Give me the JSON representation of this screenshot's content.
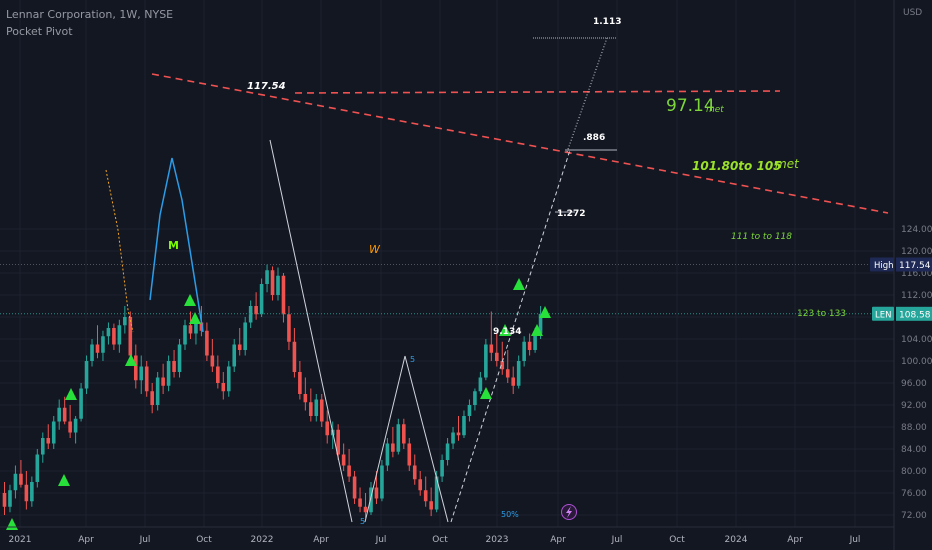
{
  "header": {
    "symbol_line": "Lennar Corporation, 1W, NYSE",
    "indicator": "Pocket Pivot"
  },
  "price_axis": {
    "currency": "USD",
    "ticks": [
      "124.00",
      "120.00",
      "116.00",
      "112.00",
      "108.00",
      "104.00",
      "100.00",
      "96.00",
      "92.00",
      "88.00",
      "84.00",
      "80.00",
      "76.00",
      "72.00"
    ]
  },
  "time_axis": {
    "ticks": [
      "2021",
      "Apr",
      "Jul",
      "Oct",
      "2022",
      "Apr",
      "Jul",
      "Oct",
      "2023",
      "Apr",
      "Jul",
      "Oct",
      "2024",
      "Apr",
      "Jul"
    ]
  },
  "badges": {
    "high_label": "High",
    "high_value": "117.54",
    "ticker_label": "LEN",
    "ticker_value": "108.58"
  },
  "annotations": {
    "peak_price": "117.54",
    "fib_1113": "1.113",
    "fib_886": ".886",
    "fib_1272": "1.272",
    "fib_low": "9.134",
    "target_9714": "97.14",
    "met_small": "met",
    "target_10180": "101.80to 105",
    "met_large": "met",
    "target_111": "111 to to 118",
    "target_123": "123 to 133",
    "pattern_m": "M",
    "pattern_w": "W",
    "wave_5": "5",
    "wave_5b": "5",
    "percent_50": "50%"
  },
  "colors": {
    "background": "#131722",
    "up": "#26a69a",
    "down": "#ef5350",
    "signal": "#27e03a",
    "resistance": "#f05252",
    "annotation_green": "#7cd63a",
    "badge_high": "#1e2a55",
    "badge_len": "#26a69a"
  },
  "chart_data": {
    "type": "candlestick",
    "title": "Lennar Corporation, 1W, NYSE",
    "ylim": [
      71,
      126
    ],
    "candles": [
      {
        "o": 76.0,
        "h": 78.0,
        "l": 72.0,
        "c": 73.5
      },
      {
        "o": 73.5,
        "h": 77.5,
        "l": 72.5,
        "c": 76.5
      },
      {
        "o": 76.5,
        "h": 81.0,
        "l": 75.0,
        "c": 79.5
      },
      {
        "o": 79.5,
        "h": 82.0,
        "l": 77.0,
        "c": 77.5
      },
      {
        "o": 77.5,
        "h": 80.0,
        "l": 73.0,
        "c": 74.5
      },
      {
        "o": 74.5,
        "h": 79.0,
        "l": 73.5,
        "c": 78.0
      },
      {
        "o": 78.0,
        "h": 84.0,
        "l": 77.0,
        "c": 83.0
      },
      {
        "o": 83.0,
        "h": 87.0,
        "l": 81.5,
        "c": 86.0
      },
      {
        "o": 86.0,
        "h": 88.5,
        "l": 84.0,
        "c": 85.0
      },
      {
        "o": 85.0,
        "h": 90.0,
        "l": 84.0,
        "c": 89.0
      },
      {
        "o": 89.0,
        "h": 93.0,
        "l": 87.5,
        "c": 91.5
      },
      {
        "o": 91.5,
        "h": 93.5,
        "l": 88.5,
        "c": 89.0
      },
      {
        "o": 89.0,
        "h": 92.0,
        "l": 86.0,
        "c": 87.0
      },
      {
        "o": 87.0,
        "h": 90.0,
        "l": 85.0,
        "c": 89.5
      },
      {
        "o": 89.5,
        "h": 96.0,
        "l": 89.0,
        "c": 95.0
      },
      {
        "o": 95.0,
        "h": 101.0,
        "l": 94.0,
        "c": 100.0
      },
      {
        "o": 100.0,
        "h": 104.0,
        "l": 99.0,
        "c": 103.0
      },
      {
        "o": 103.0,
        "h": 106.5,
        "l": 100.5,
        "c": 101.5
      },
      {
        "o": 101.5,
        "h": 105.5,
        "l": 100.0,
        "c": 104.5
      },
      {
        "o": 104.5,
        "h": 107.0,
        "l": 103.0,
        "c": 106.0
      },
      {
        "o": 106.0,
        "h": 106.8,
        "l": 102.0,
        "c": 103.0
      },
      {
        "o": 103.0,
        "h": 107.5,
        "l": 101.5,
        "c": 106.5
      },
      {
        "o": 106.5,
        "h": 110.0,
        "l": 105.0,
        "c": 108.0
      },
      {
        "o": 108.0,
        "h": 109.0,
        "l": 100.0,
        "c": 101.0
      },
      {
        "o": 101.0,
        "h": 103.0,
        "l": 95.0,
        "c": 96.5
      },
      {
        "o": 96.5,
        "h": 101.0,
        "l": 94.0,
        "c": 99.0
      },
      {
        "o": 99.0,
        "h": 100.0,
        "l": 93.5,
        "c": 94.5
      },
      {
        "o": 94.5,
        "h": 96.0,
        "l": 90.5,
        "c": 92.0
      },
      {
        "o": 92.0,
        "h": 98.0,
        "l": 91.0,
        "c": 97.0
      },
      {
        "o": 97.0,
        "h": 99.5,
        "l": 94.0,
        "c": 95.5
      },
      {
        "o": 95.5,
        "h": 101.0,
        "l": 94.5,
        "c": 100.0
      },
      {
        "o": 100.0,
        "h": 102.0,
        "l": 97.0,
        "c": 98.0
      },
      {
        "o": 98.0,
        "h": 104.0,
        "l": 97.0,
        "c": 103.0
      },
      {
        "o": 103.0,
        "h": 107.5,
        "l": 102.0,
        "c": 106.5
      },
      {
        "o": 106.5,
        "h": 109.0,
        "l": 104.0,
        "c": 105.0
      },
      {
        "o": 105.0,
        "h": 108.0,
        "l": 103.0,
        "c": 107.0
      },
      {
        "o": 107.0,
        "h": 110.0,
        "l": 104.5,
        "c": 105.5
      },
      {
        "o": 105.5,
        "h": 107.0,
        "l": 100.0,
        "c": 101.0
      },
      {
        "o": 101.0,
        "h": 104.0,
        "l": 98.0,
        "c": 99.0
      },
      {
        "o": 99.0,
        "h": 101.0,
        "l": 95.0,
        "c": 96.0
      },
      {
        "o": 96.0,
        "h": 98.0,
        "l": 93.0,
        "c": 94.5
      },
      {
        "o": 94.5,
        "h": 100.0,
        "l": 93.5,
        "c": 99.0
      },
      {
        "o": 99.0,
        "h": 104.0,
        "l": 98.0,
        "c": 103.0
      },
      {
        "o": 103.0,
        "h": 106.0,
        "l": 101.0,
        "c": 102.0
      },
      {
        "o": 102.0,
        "h": 108.0,
        "l": 101.0,
        "c": 107.0
      },
      {
        "o": 107.0,
        "h": 111.0,
        "l": 106.0,
        "c": 110.0
      },
      {
        "o": 110.0,
        "h": 112.5,
        "l": 107.5,
        "c": 108.5
      },
      {
        "o": 108.5,
        "h": 115.0,
        "l": 108.0,
        "c": 114.0
      },
      {
        "o": 114.0,
        "h": 117.54,
        "l": 112.5,
        "c": 116.5
      },
      {
        "o": 116.5,
        "h": 117.2,
        "l": 111.0,
        "c": 112.0
      },
      {
        "o": 112.0,
        "h": 117.0,
        "l": 111.0,
        "c": 115.5
      },
      {
        "o": 115.5,
        "h": 116.0,
        "l": 107.0,
        "c": 108.5
      },
      {
        "o": 108.5,
        "h": 110.0,
        "l": 102.0,
        "c": 103.5
      },
      {
        "o": 103.5,
        "h": 106.0,
        "l": 97.0,
        "c": 98.0
      },
      {
        "o": 98.0,
        "h": 100.0,
        "l": 93.0,
        "c": 94.0
      },
      {
        "o": 94.0,
        "h": 97.0,
        "l": 91.0,
        "c": 92.5
      },
      {
        "o": 92.5,
        "h": 95.0,
        "l": 89.0,
        "c": 90.0
      },
      {
        "o": 90.0,
        "h": 94.0,
        "l": 89.0,
        "c": 93.0
      },
      {
        "o": 93.0,
        "h": 94.0,
        "l": 88.0,
        "c": 89.0
      },
      {
        "o": 89.0,
        "h": 91.0,
        "l": 85.0,
        "c": 86.5
      },
      {
        "o": 86.5,
        "h": 89.0,
        "l": 84.0,
        "c": 87.5
      },
      {
        "o": 87.5,
        "h": 88.5,
        "l": 82.0,
        "c": 83.0
      },
      {
        "o": 83.0,
        "h": 85.0,
        "l": 80.0,
        "c": 81.0
      },
      {
        "o": 81.0,
        "h": 84.0,
        "l": 78.0,
        "c": 79.0
      },
      {
        "o": 79.0,
        "h": 80.0,
        "l": 74.0,
        "c": 75.0
      },
      {
        "o": 75.0,
        "h": 77.0,
        "l": 72.5,
        "c": 73.5
      },
      {
        "o": 73.5,
        "h": 76.0,
        "l": 71.5,
        "c": 72.5
      },
      {
        "o": 72.5,
        "h": 78.0,
        "l": 72.0,
        "c": 77.0
      },
      {
        "o": 77.0,
        "h": 80.0,
        "l": 74.0,
        "c": 75.0
      },
      {
        "o": 75.0,
        "h": 82.0,
        "l": 74.5,
        "c": 81.0
      },
      {
        "o": 81.0,
        "h": 86.0,
        "l": 80.0,
        "c": 85.0
      },
      {
        "o": 85.0,
        "h": 88.0,
        "l": 82.5,
        "c": 83.5
      },
      {
        "o": 83.5,
        "h": 89.5,
        "l": 83.0,
        "c": 88.5
      },
      {
        "o": 88.5,
        "h": 89.5,
        "l": 84.0,
        "c": 85.0
      },
      {
        "o": 85.0,
        "h": 86.0,
        "l": 80.0,
        "c": 81.0
      },
      {
        "o": 81.0,
        "h": 83.0,
        "l": 77.5,
        "c": 78.5
      },
      {
        "o": 78.5,
        "h": 80.0,
        "l": 75.5,
        "c": 76.5
      },
      {
        "o": 76.5,
        "h": 79.0,
        "l": 73.5,
        "c": 74.5
      },
      {
        "o": 74.5,
        "h": 77.0,
        "l": 71.8,
        "c": 73.0
      },
      {
        "o": 73.0,
        "h": 80.0,
        "l": 72.5,
        "c": 79.0
      },
      {
        "o": 79.0,
        "h": 83.0,
        "l": 78.0,
        "c": 82.0
      },
      {
        "o": 82.0,
        "h": 86.0,
        "l": 81.0,
        "c": 85.0
      },
      {
        "o": 85.0,
        "h": 88.0,
        "l": 84.0,
        "c": 87.0
      },
      {
        "o": 87.0,
        "h": 90.0,
        "l": 85.5,
        "c": 86.5
      },
      {
        "o": 86.5,
        "h": 91.0,
        "l": 86.0,
        "c": 90.0
      },
      {
        "o": 90.0,
        "h": 93.0,
        "l": 89.0,
        "c": 92.0
      },
      {
        "o": 92.0,
        "h": 95.0,
        "l": 91.0,
        "c": 94.5
      },
      {
        "o": 94.5,
        "h": 98.0,
        "l": 94.0,
        "c": 97.0
      },
      {
        "o": 97.0,
        "h": 104.0,
        "l": 96.5,
        "c": 103.0
      },
      {
        "o": 103.0,
        "h": 109.0,
        "l": 100.0,
        "c": 101.5
      },
      {
        "o": 101.5,
        "h": 105.0,
        "l": 99.0,
        "c": 100.0
      },
      {
        "o": 100.0,
        "h": 103.5,
        "l": 97.5,
        "c": 98.5
      },
      {
        "o": 98.5,
        "h": 102.0,
        "l": 96.0,
        "c": 97.0
      },
      {
        "o": 97.0,
        "h": 99.0,
        "l": 94.0,
        "c": 95.5
      },
      {
        "o": 95.5,
        "h": 101.0,
        "l": 95.0,
        "c": 100.0
      },
      {
        "o": 100.0,
        "h": 104.5,
        "l": 99.0,
        "c": 103.5
      },
      {
        "o": 103.5,
        "h": 105.0,
        "l": 101.0,
        "c": 102.0
      },
      {
        "o": 102.0,
        "h": 106.0,
        "l": 101.5,
        "c": 105.0
      },
      {
        "o": 105.0,
        "h": 110.0,
        "l": 104.0,
        "c": 108.58
      }
    ]
  }
}
